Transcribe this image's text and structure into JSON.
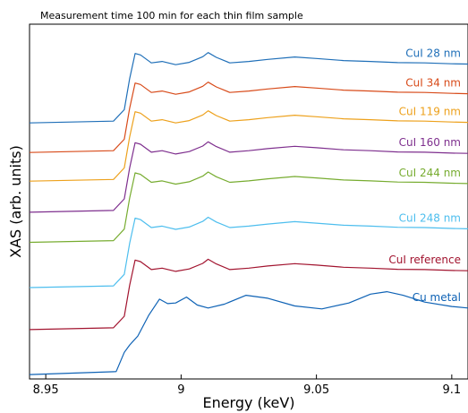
{
  "chart_data": {
    "type": "line",
    "title": "Measurement time 100 min for each thin film sample",
    "xlabel": "Energy (keV)",
    "ylabel": "XAS (arb. units)",
    "xlim": [
      8.944,
      9.106
    ],
    "ylim": [
      0,
      12
    ],
    "grid": false,
    "legend": "labels at right end of each curve",
    "x_ticks": [
      8.95,
      9.0,
      9.05,
      9.1
    ],
    "x_tick_labels": [
      "8.95",
      "9",
      "9.05",
      "9.1"
    ],
    "series": [
      {
        "name": "CuI 28 nm",
        "color": "#1f6fb8",
        "type": "cui",
        "offset": 8.66,
        "x": [
          8.944,
          8.975,
          8.979,
          8.981,
          8.983,
          8.985,
          8.989,
          8.993,
          8.998,
          9.003,
          9.008,
          9.01,
          9.013,
          9.018,
          9.025,
          9.032,
          9.042,
          9.05,
          9.06,
          9.07,
          9.08,
          9.09,
          9.1,
          9.106
        ],
        "y": [
          0.0,
          0.06,
          0.45,
          1.5,
          2.35,
          2.3,
          2.03,
          2.08,
          1.97,
          2.05,
          2.24,
          2.38,
          2.22,
          2.03,
          2.08,
          2.15,
          2.23,
          2.18,
          2.11,
          2.08,
          2.04,
          2.03,
          2.0,
          1.99
        ]
      },
      {
        "name": "CuI 34 nm",
        "color": "#d84b1a",
        "type": "cui",
        "offset": 7.66,
        "x": [
          8.944,
          8.975,
          8.979,
          8.981,
          8.983,
          8.985,
          8.989,
          8.993,
          8.998,
          9.003,
          9.008,
          9.01,
          9.013,
          9.018,
          9.025,
          9.032,
          9.042,
          9.05,
          9.06,
          9.07,
          9.08,
          9.09,
          9.1,
          9.106
        ],
        "y": [
          0.0,
          0.06,
          0.45,
          1.5,
          2.35,
          2.3,
          2.03,
          2.08,
          1.97,
          2.05,
          2.24,
          2.38,
          2.22,
          2.03,
          2.08,
          2.15,
          2.23,
          2.18,
          2.11,
          2.08,
          2.04,
          2.03,
          2.0,
          1.99
        ]
      },
      {
        "name": "CuI 119 nm",
        "color": "#eda11c",
        "type": "cui",
        "offset": 6.69,
        "x": [
          8.944,
          8.975,
          8.979,
          8.981,
          8.983,
          8.985,
          8.989,
          8.993,
          8.998,
          9.003,
          9.008,
          9.01,
          9.013,
          9.018,
          9.025,
          9.032,
          9.042,
          9.05,
          9.06,
          9.07,
          9.08,
          9.09,
          9.1,
          9.106
        ],
        "y": [
          0.0,
          0.06,
          0.45,
          1.5,
          2.35,
          2.3,
          2.03,
          2.08,
          1.97,
          2.05,
          2.24,
          2.38,
          2.22,
          2.03,
          2.08,
          2.15,
          2.23,
          2.18,
          2.11,
          2.08,
          2.04,
          2.03,
          2.0,
          1.99
        ]
      },
      {
        "name": "CuI 160 nm",
        "color": "#7e2f8e",
        "type": "cui",
        "offset": 5.64,
        "x": [
          8.944,
          8.975,
          8.979,
          8.981,
          8.983,
          8.985,
          8.989,
          8.993,
          8.998,
          9.003,
          9.008,
          9.01,
          9.013,
          9.018,
          9.025,
          9.032,
          9.042,
          9.05,
          9.06,
          9.07,
          9.08,
          9.09,
          9.1,
          9.106
        ],
        "y": [
          0.0,
          0.06,
          0.45,
          1.5,
          2.35,
          2.3,
          2.03,
          2.08,
          1.97,
          2.05,
          2.24,
          2.38,
          2.22,
          2.03,
          2.08,
          2.15,
          2.23,
          2.18,
          2.11,
          2.08,
          2.04,
          2.03,
          2.0,
          1.99
        ]
      },
      {
        "name": "CuI 244 nm",
        "color": "#77ac30",
        "type": "cui",
        "offset": 4.62,
        "x": [
          8.944,
          8.975,
          8.979,
          8.981,
          8.983,
          8.985,
          8.989,
          8.993,
          8.998,
          9.003,
          9.008,
          9.01,
          9.013,
          9.018,
          9.025,
          9.032,
          9.042,
          9.05,
          9.06,
          9.07,
          9.08,
          9.09,
          9.1,
          9.106
        ],
        "y": [
          0.0,
          0.06,
          0.45,
          1.5,
          2.35,
          2.3,
          2.03,
          2.08,
          1.97,
          2.05,
          2.24,
          2.38,
          2.22,
          2.03,
          2.08,
          2.15,
          2.23,
          2.18,
          2.11,
          2.08,
          2.04,
          2.03,
          2.0,
          1.99
        ]
      },
      {
        "name": "CuI 248 nm",
        "color": "#4dbeee",
        "type": "cui",
        "offset": 3.09,
        "x": [
          8.944,
          8.975,
          8.979,
          8.981,
          8.983,
          8.985,
          8.989,
          8.993,
          8.998,
          9.003,
          9.008,
          9.01,
          9.013,
          9.018,
          9.025,
          9.032,
          9.042,
          9.05,
          9.06,
          9.07,
          9.08,
          9.09,
          9.1,
          9.106
        ],
        "y": [
          0.0,
          0.06,
          0.45,
          1.5,
          2.35,
          2.3,
          2.03,
          2.08,
          1.97,
          2.05,
          2.24,
          2.38,
          2.22,
          2.03,
          2.08,
          2.15,
          2.23,
          2.18,
          2.11,
          2.08,
          2.04,
          2.03,
          2.0,
          1.99
        ]
      },
      {
        "name": "CuI reference",
        "color": "#a2142f",
        "type": "cui",
        "offset": 1.67,
        "x": [
          8.944,
          8.975,
          8.979,
          8.981,
          8.983,
          8.985,
          8.989,
          8.993,
          8.998,
          9.003,
          9.008,
          9.01,
          9.013,
          9.018,
          9.025,
          9.032,
          9.042,
          9.05,
          9.06,
          9.07,
          9.08,
          9.09,
          9.1,
          9.106
        ],
        "y": [
          0.0,
          0.06,
          0.45,
          1.5,
          2.35,
          2.3,
          2.03,
          2.08,
          1.97,
          2.05,
          2.24,
          2.38,
          2.22,
          2.03,
          2.08,
          2.15,
          2.23,
          2.18,
          2.11,
          2.08,
          2.04,
          2.03,
          2.0,
          1.99
        ]
      },
      {
        "name": "Cu metal",
        "color": "#0e62b5",
        "type": "metal",
        "offset": 0.15,
        "x": [
          8.944,
          8.976,
          8.979,
          8.981,
          8.984,
          8.988,
          8.992,
          8.995,
          8.998,
          9.002,
          9.006,
          9.01,
          9.016,
          9.024,
          9.032,
          9.042,
          9.052,
          9.062,
          9.07,
          9.076,
          9.082,
          9.09,
          9.1,
          9.106
        ],
        "y": [
          0.0,
          0.1,
          0.75,
          1.0,
          1.3,
          2.0,
          2.55,
          2.4,
          2.42,
          2.62,
          2.35,
          2.25,
          2.38,
          2.68,
          2.58,
          2.32,
          2.22,
          2.42,
          2.72,
          2.8,
          2.68,
          2.45,
          2.3,
          2.25
        ]
      }
    ]
  }
}
